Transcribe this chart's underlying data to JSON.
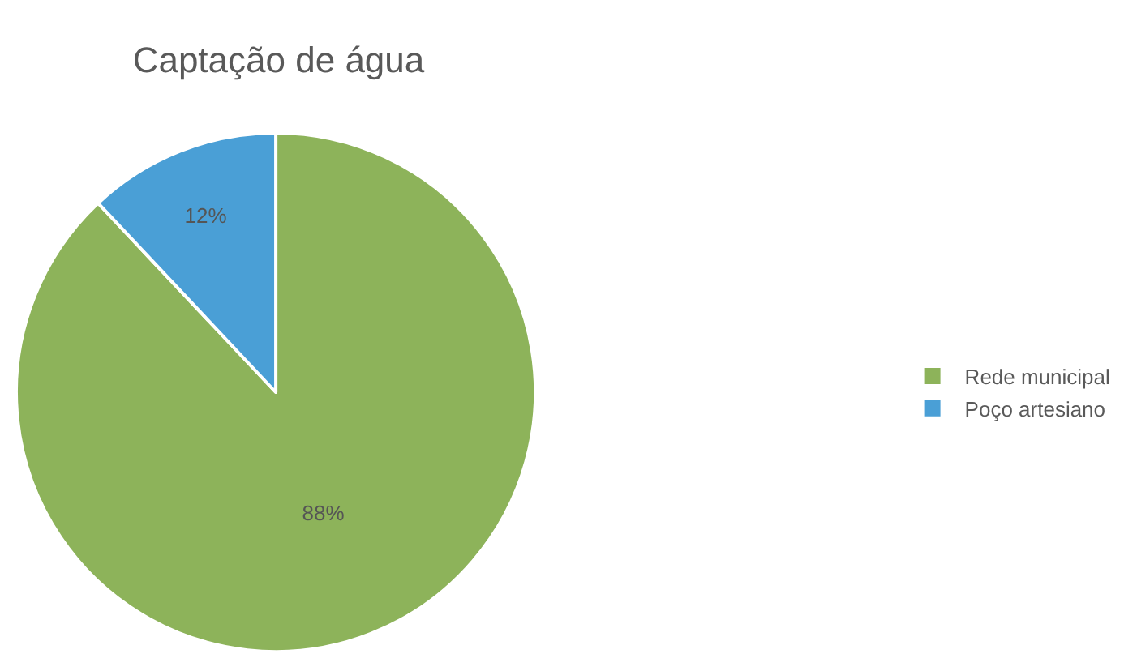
{
  "chart_data": {
    "type": "pie",
    "title": "Captação de água",
    "categories": [
      "Rede municipal",
      "Poço artesiano"
    ],
    "values": [
      88,
      12
    ],
    "colors": [
      "#8db35a",
      "#4a9fd6"
    ],
    "value_labels": [
      "88%",
      "12%"
    ],
    "legend": "right"
  }
}
